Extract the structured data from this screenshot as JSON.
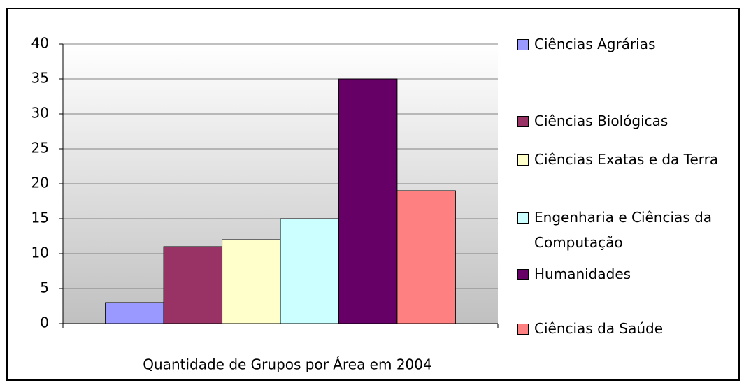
{
  "chart_data": {
    "type": "bar",
    "categories": [
      "Quantidade de Grupos por Área em 2004"
    ],
    "series": [
      {
        "name": "Ciências Agrárias",
        "color": "#9999ff",
        "values": [
          3
        ]
      },
      {
        "name": "Ciências Biológicas",
        "color": "#993366",
        "values": [
          11
        ]
      },
      {
        "name": "Ciências Exatas e da Terra",
        "color": "#ffffcc",
        "values": [
          12
        ]
      },
      {
        "name": "Engenharia e Ciências da Computação",
        "color": "#ccffff",
        "values": [
          15
        ]
      },
      {
        "name": "Humanidades",
        "color": "#660066",
        "values": [
          35
        ]
      },
      {
        "name": "Ciências da Saúde",
        "color": "#ff8080",
        "values": [
          19
        ]
      }
    ],
    "ylim": [
      0,
      40
    ],
    "yticks": [
      0,
      5,
      10,
      15,
      20,
      25,
      30,
      35,
      40
    ],
    "grid": true,
    "legend": "right"
  }
}
